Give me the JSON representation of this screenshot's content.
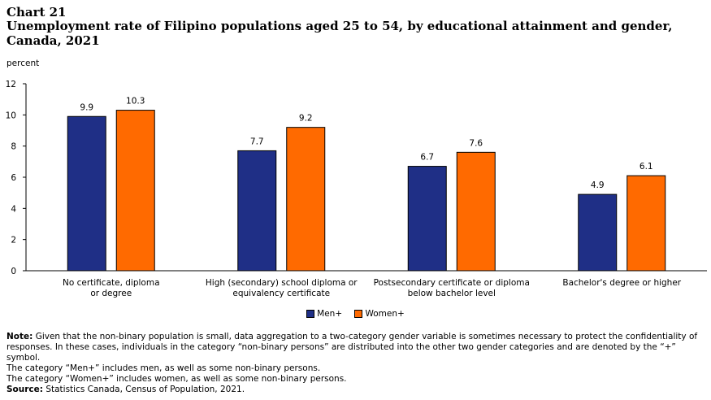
{
  "header": {
    "chart_number": "Chart 21",
    "title": "Unemployment rate of Filipino populations aged 25 to 54, by educational attainment and gender, Canada, 2021",
    "unit_label": "percent"
  },
  "chart_data": {
    "type": "bar",
    "title": "Unemployment rate of Filipino populations aged 25 to 54, by educational attainment and gender, Canada, 2021",
    "ylabel": "percent",
    "xlabel": "",
    "ylim": [
      0,
      12
    ],
    "yticks": [
      0,
      2,
      4,
      6,
      8,
      10,
      12
    ],
    "categories": [
      [
        "No certificate, diploma",
        "or degree"
      ],
      [
        "High (secondary) school diploma or",
        "equivalency certificate"
      ],
      [
        "Postsecondary certificate or diploma",
        "below bachelor level"
      ],
      [
        "Bachelor's degree or higher"
      ]
    ],
    "series": [
      {
        "name": "Men+",
        "color": "#1f2f86",
        "values": [
          9.9,
          7.7,
          6.7,
          4.9
        ]
      },
      {
        "name": "Women+",
        "color": "#ff6a00",
        "values": [
          10.3,
          9.2,
          7.6,
          6.1
        ]
      }
    ],
    "grid": false,
    "legend_position": "bottom"
  },
  "notes": {
    "note_label": "Note:",
    "note_text": "Given that the non-binary population is small, data aggregation to a two-category gender variable is sometimes necessary to protect the confidentiality of responses. In these cases, individuals in the category “non-binary persons” are distributed into the other two gender categories and are denoted by the “+” symbol.",
    "men_text": "The category “Men+” includes men, as well as some non-binary persons.",
    "women_text": "The category “Women+” includes women, as well as some non-binary persons.",
    "source_label": "Source:",
    "source_text": "Statistics Canada, Census of Population, 2021."
  }
}
